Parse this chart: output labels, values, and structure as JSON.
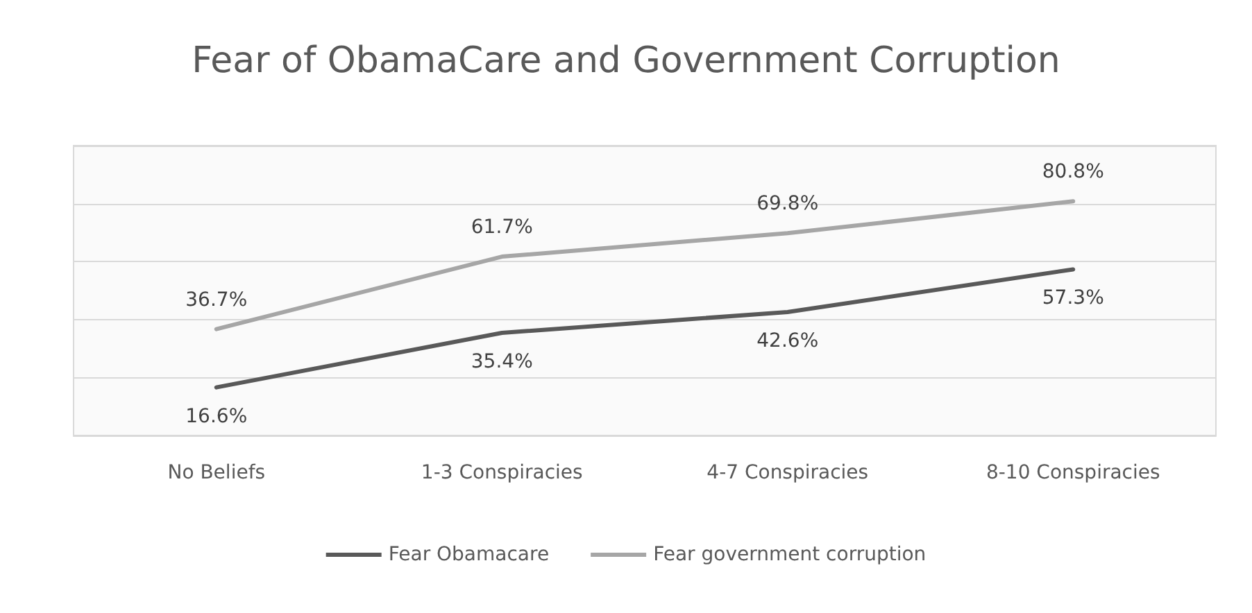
{
  "chart_data": {
    "type": "line",
    "title": "Fear of ObamaCare and Government Corruption",
    "categories": [
      "No Beliefs",
      "1-3 Conspiracies",
      "4-7 Conspiracies",
      "8-10 Conspiracies"
    ],
    "series": [
      {
        "name": "Fear Obamacare",
        "color": "#595959",
        "values": [
          16.6,
          35.4,
          42.6,
          57.3
        ],
        "value_labels": [
          "16.6%",
          "35.4%",
          "42.6%",
          "57.3%"
        ]
      },
      {
        "name": "Fear government corruption",
        "color": "#a6a6a6",
        "values": [
          36.7,
          61.7,
          69.8,
          80.8
        ],
        "value_labels": [
          "36.7%",
          "61.7%",
          "69.8%",
          "80.8%"
        ]
      }
    ],
    "ylim": [
      0,
      100
    ],
    "yticks": [
      {
        "value": 0,
        "label": null
      },
      {
        "value": 20,
        "label": null
      },
      {
        "value": 40,
        "label": null
      },
      {
        "value": 60,
        "label": null
      },
      {
        "value": 80,
        "label": null
      },
      {
        "value": 100,
        "label": null
      }
    ],
    "tick_labels": "x",
    "grid": "y",
    "legend": "bottom",
    "marker": "none",
    "line_style": "solid"
  }
}
